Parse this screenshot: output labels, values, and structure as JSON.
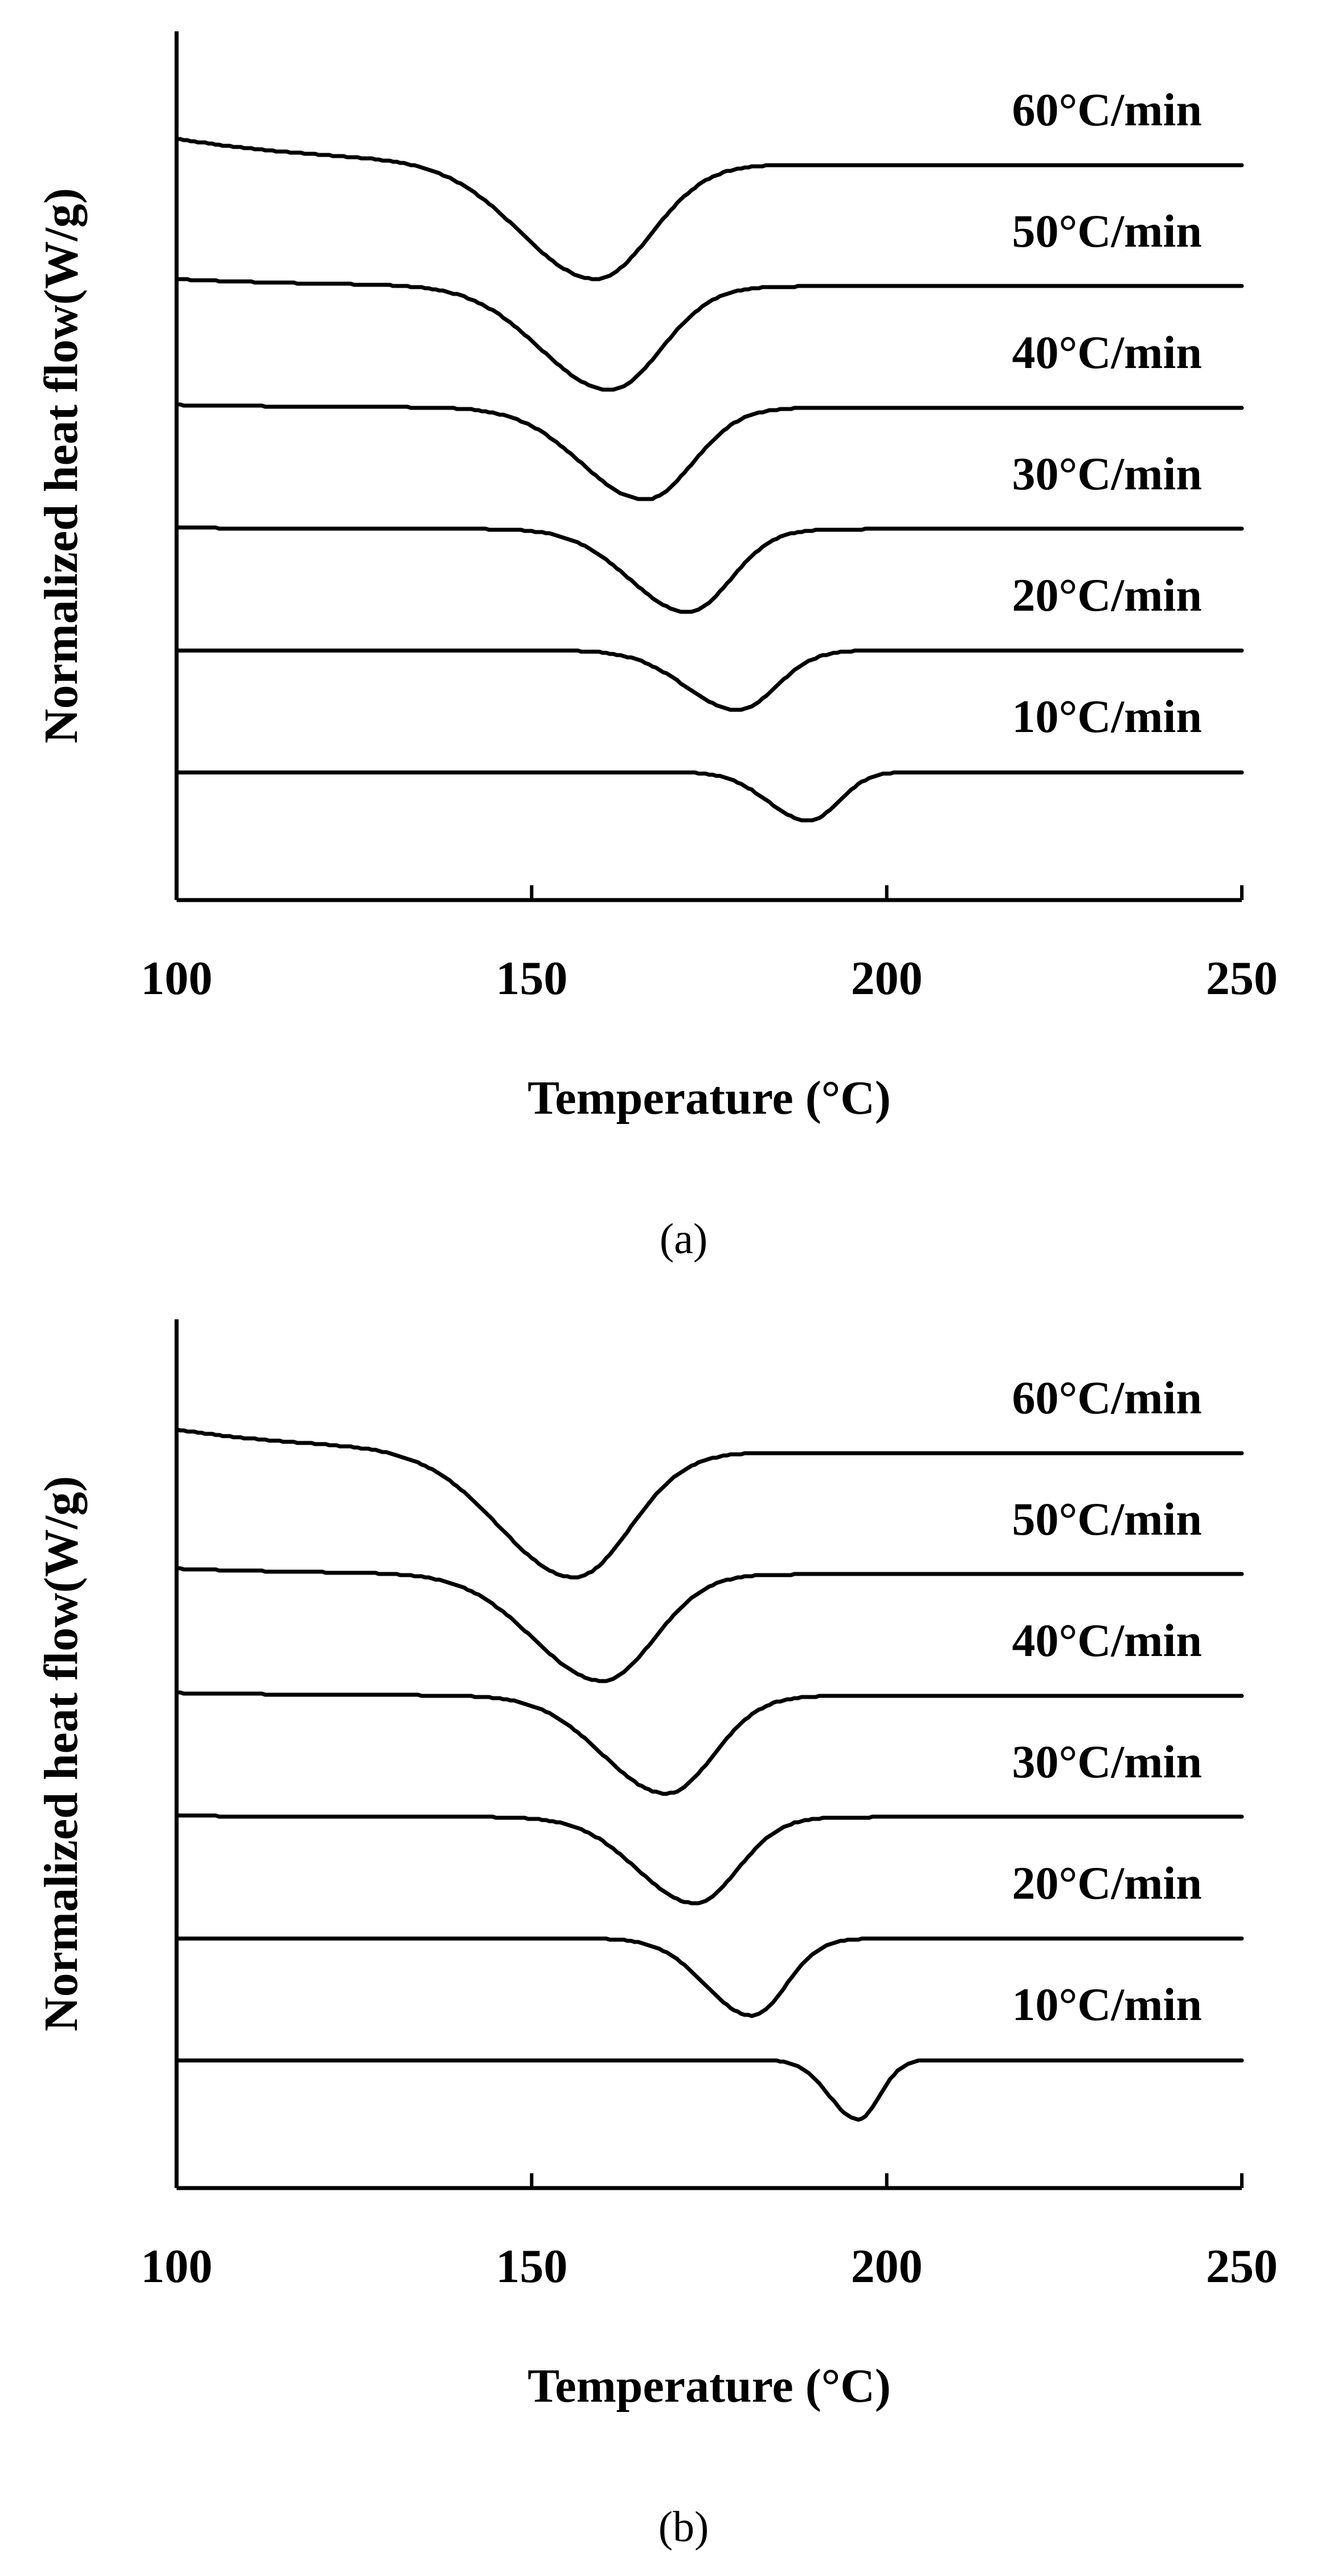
{
  "chart_data": [
    {
      "type": "line",
      "panel": "a",
      "caption": "(a)",
      "xlabel": "Temperature (°C)",
      "ylabel": "Normalized heat flow(W/g)",
      "xlim": [
        100,
        250
      ],
      "xticks": [
        "100",
        "150",
        "200",
        "250"
      ],
      "xtick_values": [
        100,
        150,
        200,
        250
      ],
      "series": [
        {
          "name": "60°C/min",
          "baseline_level": 6,
          "peak_temperature": 159,
          "peak_depth": 0.78,
          "peak_width": 13,
          "start_offset": 0.18
        },
        {
          "name": "50°C/min",
          "baseline_level": 5,
          "peak_temperature": 161,
          "peak_depth": 0.7,
          "peak_width": 12,
          "start_offset": 0.05
        },
        {
          "name": "40°C/min",
          "baseline_level": 4,
          "peak_temperature": 166,
          "peak_depth": 0.62,
          "peak_width": 11,
          "start_offset": 0.02
        },
        {
          "name": "30°C/min",
          "baseline_level": 3,
          "peak_temperature": 172,
          "peak_depth": 0.56,
          "peak_width": 10,
          "start_offset": 0.01
        },
        {
          "name": "20°C/min",
          "baseline_level": 2,
          "peak_temperature": 179,
          "peak_depth": 0.4,
          "peak_width": 9,
          "start_offset": 0.0
        },
        {
          "name": "10°C/min",
          "baseline_level": 1,
          "peak_temperature": 189,
          "peak_depth": 0.33,
          "peak_width": 7,
          "start_offset": 0.0
        }
      ]
    },
    {
      "type": "line",
      "panel": "b",
      "caption": "(b)",
      "xlabel": "Temperature (°C)",
      "ylabel": "Normalized heat flow(W/g)",
      "xlim": [
        100,
        250
      ],
      "xticks": [
        "100",
        "150",
        "200",
        "250"
      ],
      "xtick_values": [
        100,
        150,
        200,
        250
      ],
      "series": [
        {
          "name": "60°C/min",
          "baseline_level": 6,
          "peak_temperature": 156,
          "peak_depth": 0.85,
          "peak_width": 13,
          "start_offset": 0.16
        },
        {
          "name": "50°C/min",
          "baseline_level": 5,
          "peak_temperature": 160,
          "peak_depth": 0.72,
          "peak_width": 12,
          "start_offset": 0.04
        },
        {
          "name": "40°C/min",
          "baseline_level": 4,
          "peak_temperature": 169,
          "peak_depth": 0.66,
          "peak_width": 11,
          "start_offset": 0.02
        },
        {
          "name": "30°C/min",
          "baseline_level": 3,
          "peak_temperature": 173,
          "peak_depth": 0.58,
          "peak_width": 10,
          "start_offset": 0.01
        },
        {
          "name": "20°C/min",
          "baseline_level": 2,
          "peak_temperature": 181,
          "peak_depth": 0.52,
          "peak_width": 8,
          "start_offset": 0.0
        },
        {
          "name": "10°C/min",
          "baseline_level": 1,
          "peak_temperature": 196,
          "peak_depth": 0.4,
          "peak_width": 5,
          "start_offset": 0.0
        }
      ]
    }
  ]
}
